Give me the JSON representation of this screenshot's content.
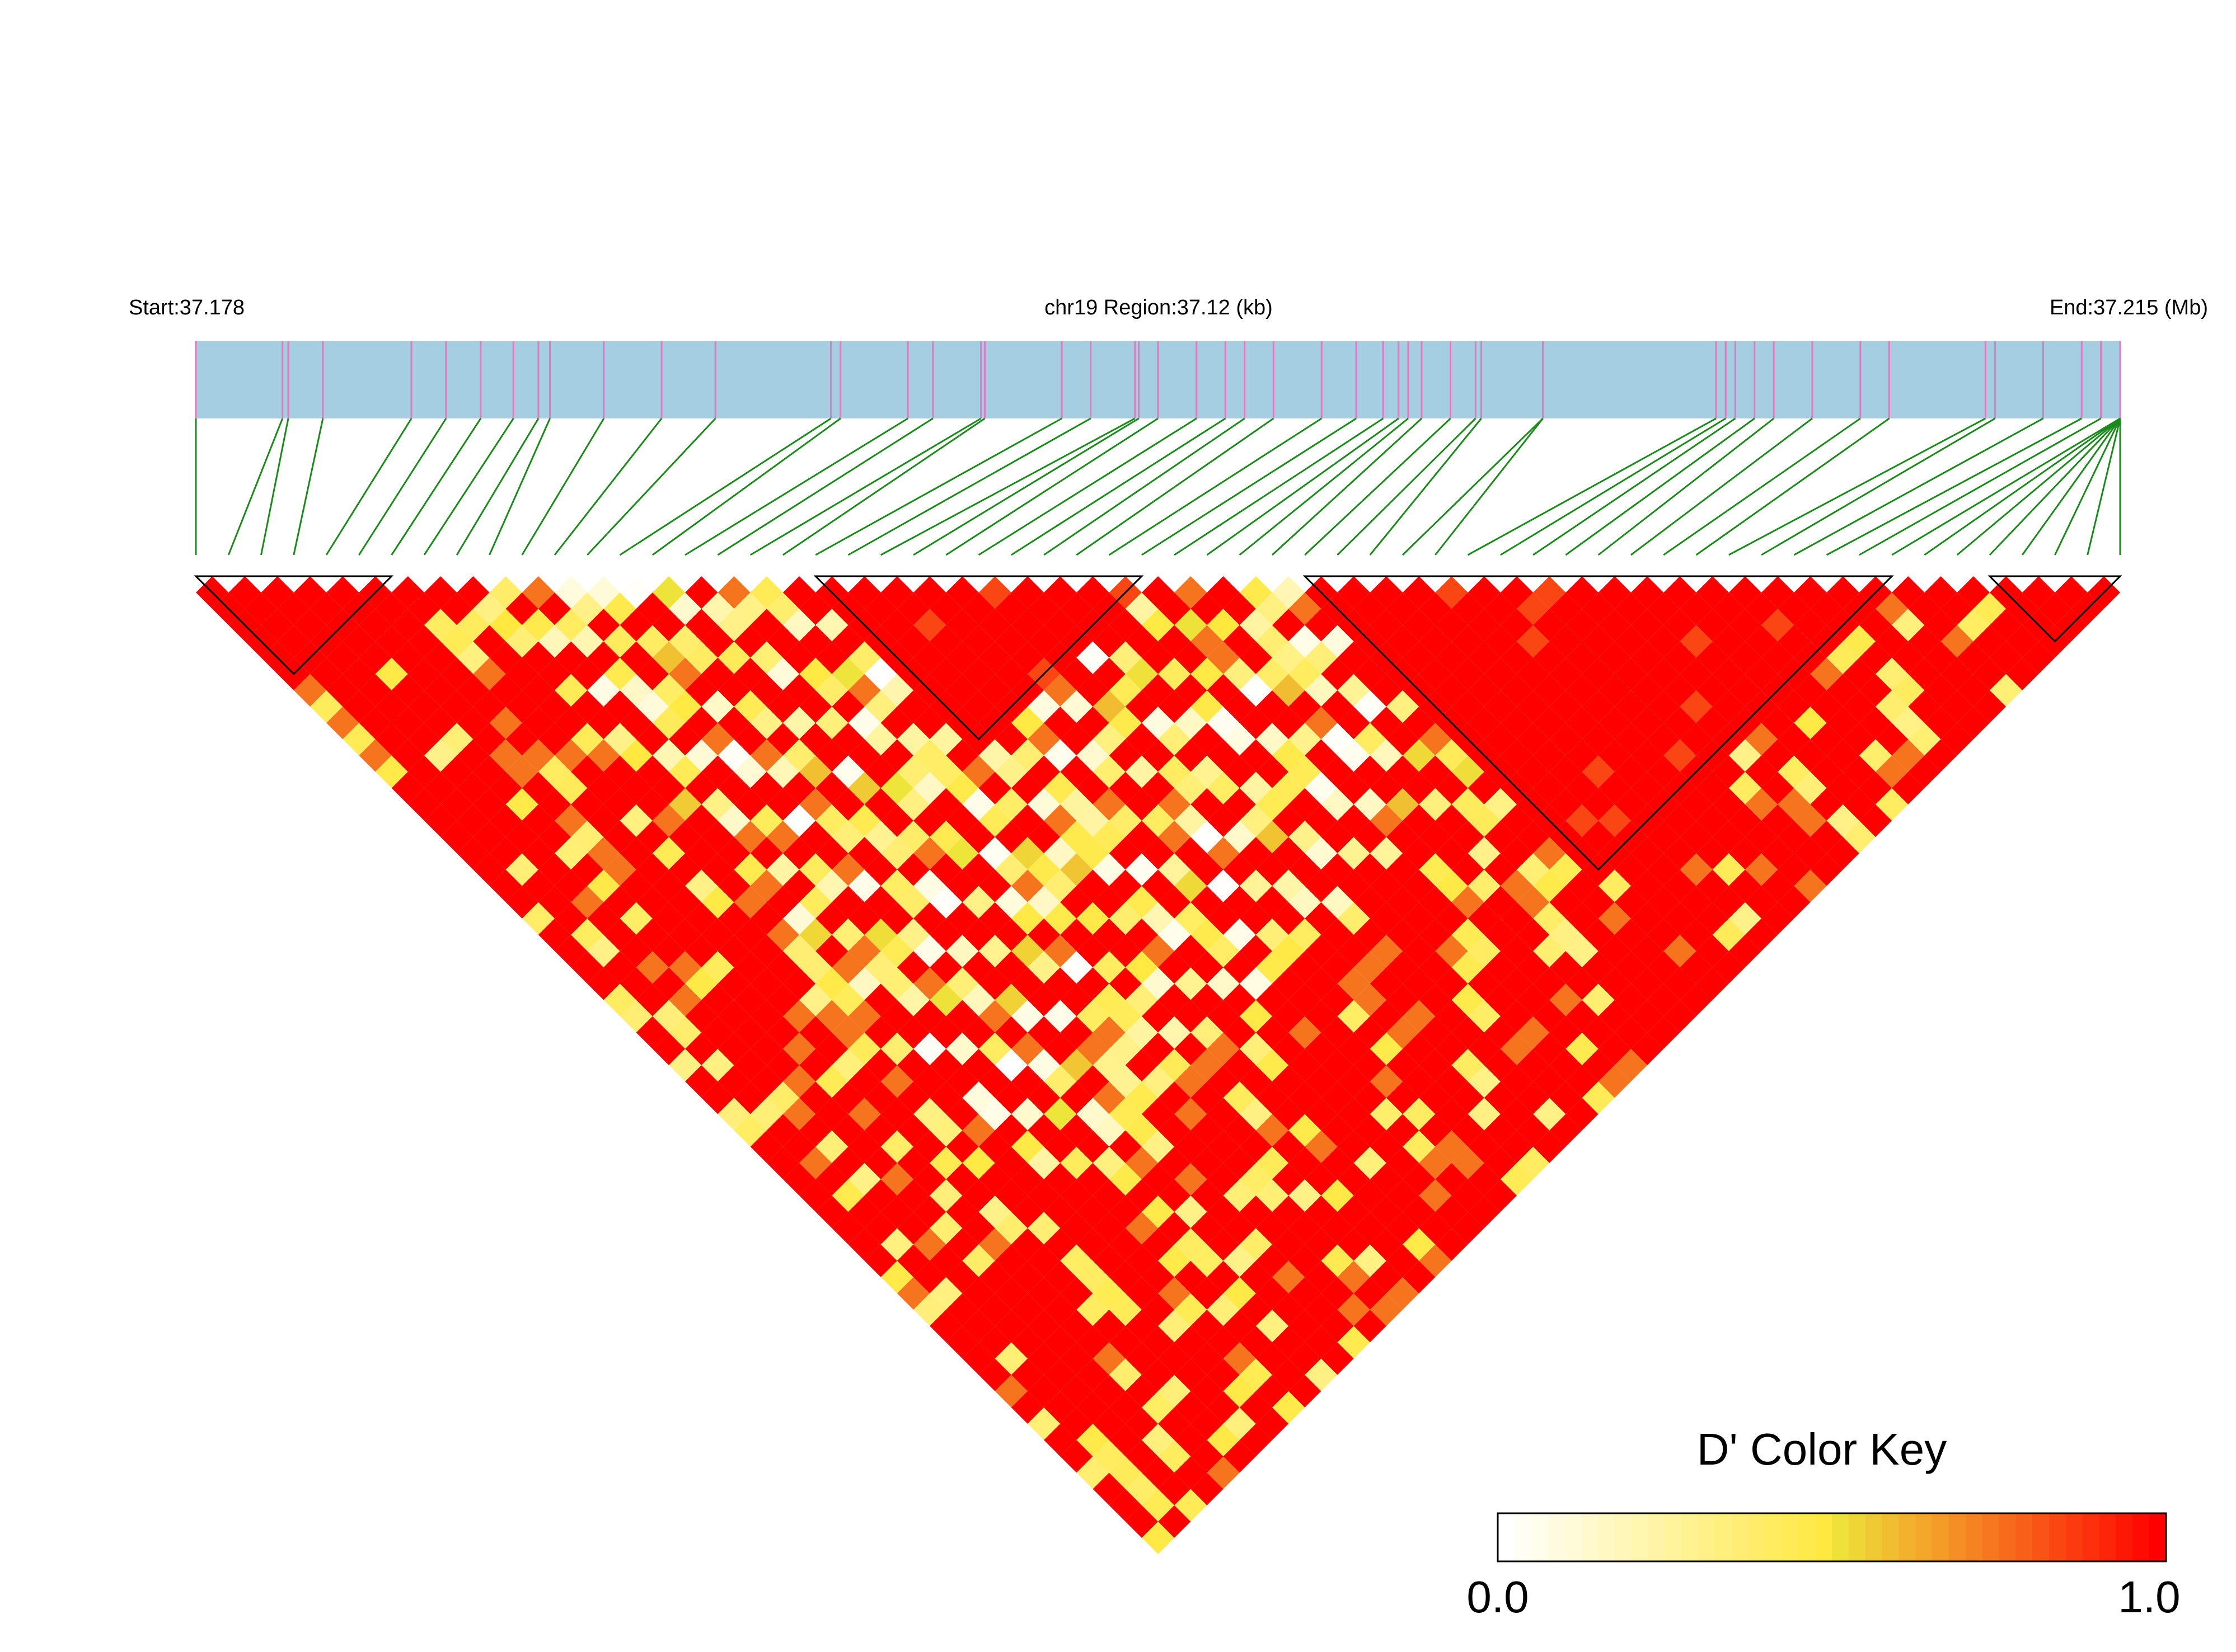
{
  "header": {
    "start_label": "Start:37.178",
    "region_label": "chr19 Region:37.12 (kb)",
    "end_label": "End:37.215 (Mb)"
  },
  "colors": {
    "region_bar": "#a6cee3",
    "snp_tick": "#e377c2",
    "connector": "#1a8a1a",
    "d_prime_high": "#ff0000",
    "d_prime_mid": "#eeee40",
    "d_prime_low": "#ffffff"
  },
  "chart_data": {
    "type": "heatmap",
    "title": "",
    "scale": "D' (LD matrix, triangle)",
    "snp_count": 60,
    "region_start_mb": 37.178,
    "region_end_mb": 37.215,
    "haplotype_blocks": [
      {
        "first_snp": 1,
        "last_snp": 7
      },
      {
        "first_snp": 20,
        "last_snp": 30
      },
      {
        "first_snp": 35,
        "last_snp": 53
      },
      {
        "first_snp": 56,
        "last_snp": 60
      }
    ],
    "snp_positions_fraction": [
      0.0,
      0.045,
      0.048,
      0.066,
      0.112,
      0.13,
      0.148,
      0.165,
      0.178,
      0.184,
      0.212,
      0.242,
      0.27,
      0.33,
      0.335,
      0.37,
      0.383,
      0.408,
      0.41,
      0.45,
      0.465,
      0.488,
      0.49,
      0.5,
      0.52,
      0.535,
      0.545,
      0.56,
      0.585,
      0.603,
      0.617,
      0.625,
      0.63,
      0.637,
      0.652,
      0.665,
      0.668,
      0.7,
      0.7,
      0.79,
      0.795,
      0.8,
      0.81,
      0.82,
      0.84,
      0.865,
      0.88,
      0.93,
      0.935,
      0.96,
      0.98,
      0.99,
      1.0,
      1.0,
      1.0,
      1.0,
      1.0,
      1.0,
      1.0,
      1.0
    ],
    "color_key": {
      "title": "D' Color Key",
      "min_label": "0.0",
      "max_label": "1.0",
      "min": 0.0,
      "max": 1.0
    }
  }
}
